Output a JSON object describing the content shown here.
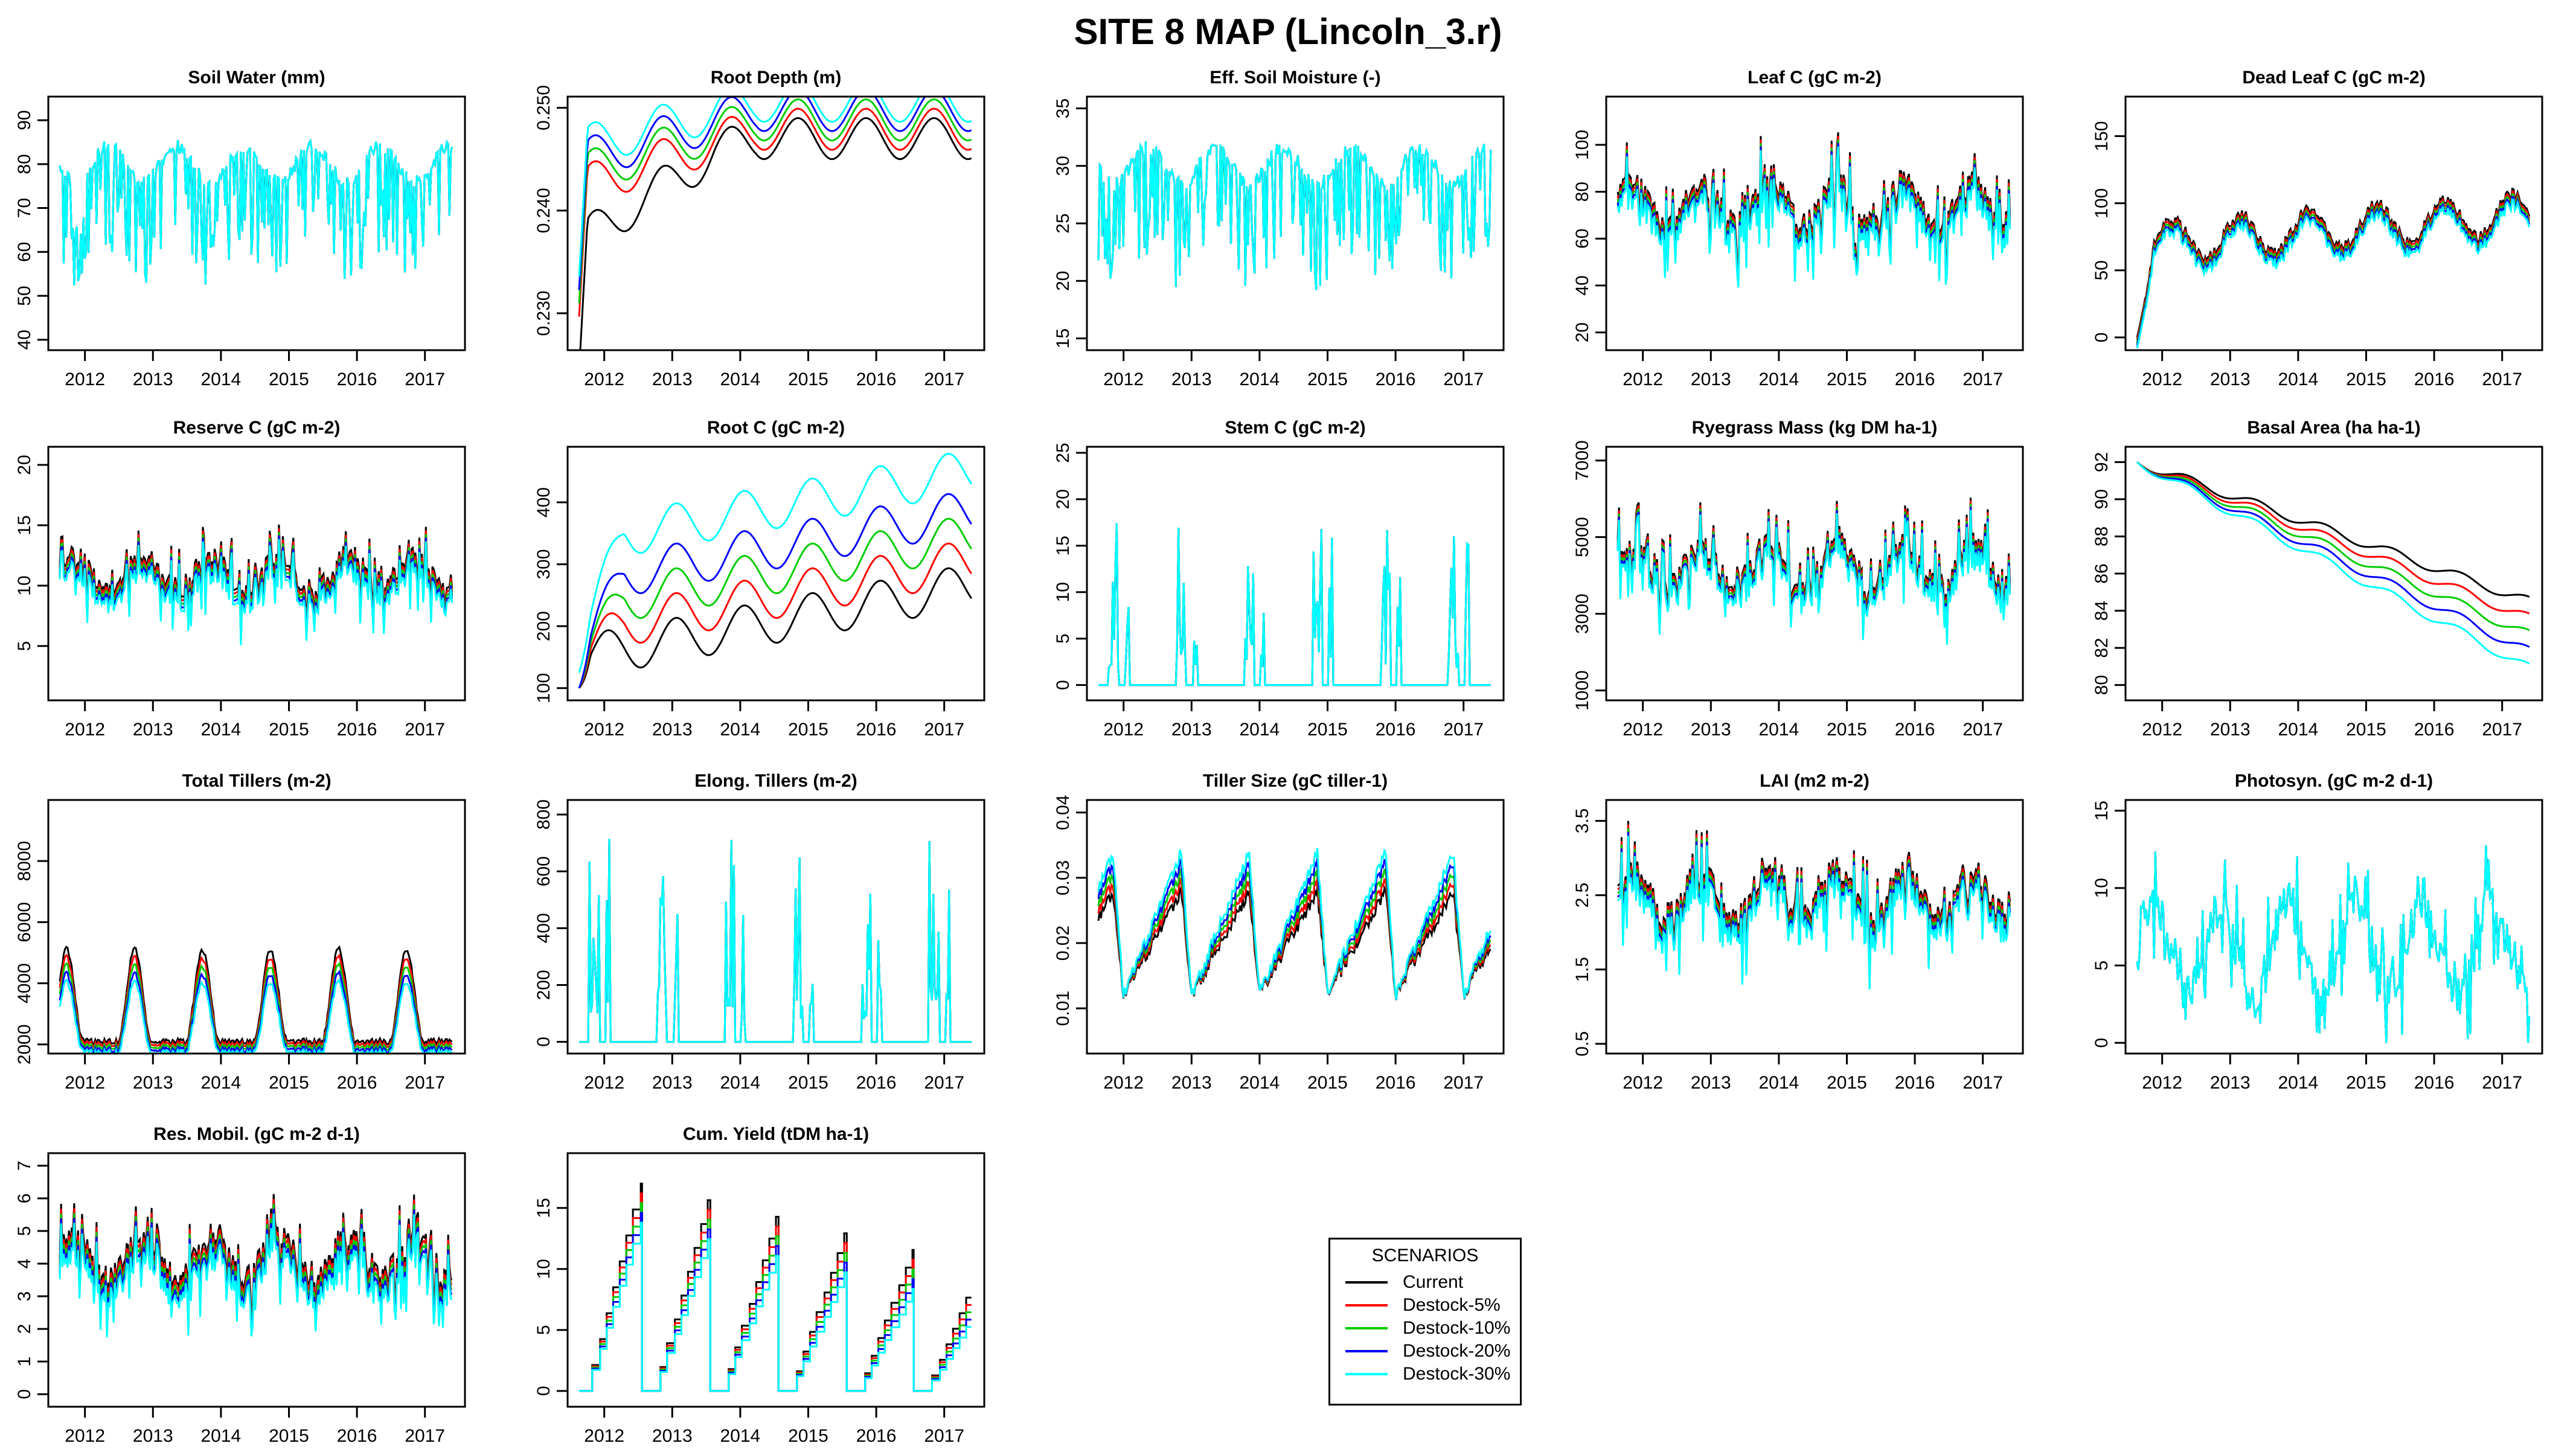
{
  "title": "SITE 8 MAP (Lincoln_3.r)",
  "legend": {
    "title": "SCENARIOS",
    "entries": [
      {
        "label": "Current",
        "color": "#000000"
      },
      {
        "label": "Destock-5%",
        "color": "#ff0000"
      },
      {
        "label": "Destock-10%",
        "color": "#00cd00"
      },
      {
        "label": "Destock-20%",
        "color": "#0000ff"
      },
      {
        "label": "Destock-30%",
        "color": "#00ffff"
      }
    ]
  },
  "chart_data": [
    {
      "type": "line",
      "title": "Soil Water (mm)",
      "x_range": [
        2011.55,
        2017.5
      ],
      "x_ticks": [
        2012,
        2013,
        2014,
        2015,
        2016,
        2017
      ],
      "ylim": [
        39,
        94
      ],
      "y_ticks": [
        40,
        50,
        60,
        70,
        80,
        90
      ],
      "y_tick_labels": [
        "40",
        "50",
        "60",
        "70",
        "80",
        "90"
      ],
      "pattern": "soilwater",
      "base": 80,
      "amp": 20,
      "spread": 0,
      "mode": "none",
      "scenarios": [
        "Current",
        "Destock-5%",
        "Destock-10%",
        "Destock-20%",
        "Destock-30%"
      ]
    },
    {
      "type": "line",
      "title": "Root Depth (m)",
      "x_range": [
        2011.55,
        2017.5
      ],
      "x_ticks": [
        2012,
        2013,
        2014,
        2015,
        2016,
        2017
      ],
      "ylim": [
        0.227,
        0.2505
      ],
      "y_ticks": [
        0.23,
        0.24,
        0.25
      ],
      "y_tick_labels": [
        "0.230",
        "0.240",
        "0.250"
      ],
      "pattern": "rootdepth",
      "base": 0.241,
      "amp": 0.004,
      "spread": 0.0013,
      "mode": "up",
      "start": 0.228,
      "scenarios": [
        "Current",
        "Destock-5%",
        "Destock-10%",
        "Destock-20%",
        "Destock-30%"
      ]
    },
    {
      "type": "line",
      "title": "Eff. Soil Moisture (-)",
      "x_range": [
        2011.55,
        2017.5
      ],
      "x_ticks": [
        2012,
        2013,
        2014,
        2015,
        2016,
        2017
      ],
      "ylim": [
        14.5,
        35.5
      ],
      "y_ticks": [
        15,
        20,
        25,
        30,
        35
      ],
      "y_tick_labels": [
        "15",
        "20",
        "25",
        "30",
        "35"
      ],
      "pattern": "soilwater",
      "base": 30,
      "amp": 8,
      "spread": 0,
      "mode": "none",
      "scenarios": [
        "Current",
        "Destock-5%",
        "Destock-10%",
        "Destock-20%",
        "Destock-30%"
      ]
    },
    {
      "type": "line",
      "title": "Leaf C (gC m-2)",
      "x_range": [
        2011.55,
        2017.5
      ],
      "x_ticks": [
        2012,
        2013,
        2014,
        2015,
        2016,
        2017
      ],
      "ylim": [
        15,
        118
      ],
      "y_ticks": [
        20,
        40,
        60,
        80,
        100
      ],
      "y_tick_labels": [
        "20",
        "40",
        "60",
        "80",
        "100"
      ],
      "pattern": "leaf",
      "base": 75,
      "amp": 25,
      "spread": 1.5,
      "mode": "down",
      "scenarios": [
        "Current",
        "Destock-5%",
        "Destock-10%",
        "Destock-20%",
        "Destock-30%"
      ]
    },
    {
      "type": "line",
      "title": "Dead Leaf C (gC m-2)",
      "x_range": [
        2011.55,
        2017.5
      ],
      "x_ticks": [
        2012,
        2013,
        2014,
        2015,
        2016,
        2017
      ],
      "ylim": [
        -5,
        175
      ],
      "y_ticks": [
        0,
        50,
        100,
        150
      ],
      "y_tick_labels": [
        "0",
        "50",
        "100",
        "150"
      ],
      "pattern": "deadleaf",
      "base": 70,
      "amp": 30,
      "spread": 2,
      "mode": "down",
      "start": 0,
      "scenarios": [
        "Current",
        "Destock-5%",
        "Destock-10%",
        "Destock-20%",
        "Destock-30%"
      ]
    },
    {
      "type": "line",
      "title": "Reserve C (gC m-2)",
      "x_range": [
        2011.55,
        2017.5
      ],
      "x_ticks": [
        2012,
        2013,
        2014,
        2015,
        2016,
        2017
      ],
      "ylim": [
        1,
        21
      ],
      "y_ticks": [
        5,
        10,
        15,
        20
      ],
      "y_tick_labels": [
        "5",
        "10",
        "15",
        "20"
      ],
      "pattern": "leaf",
      "base": 11,
      "amp": 4,
      "spread": 0.3,
      "mode": "down",
      "scenarios": [
        "Current",
        "Destock-5%",
        "Destock-10%",
        "Destock-20%",
        "Destock-30%"
      ]
    },
    {
      "type": "line",
      "title": "Root C (gC m-2)",
      "x_range": [
        2011.55,
        2017.5
      ],
      "x_ticks": [
        2012,
        2013,
        2014,
        2015,
        2016,
        2017
      ],
      "ylim": [
        90,
        480
      ],
      "y_ticks": [
        100,
        200,
        300,
        400
      ],
      "y_tick_labels": [
        "100",
        "200",
        "300",
        "400"
      ],
      "pattern": "rootc",
      "base": 150,
      "amp": 35,
      "spread": 40,
      "mode": "up",
      "start": 100,
      "scenarios": [
        "Current",
        "Destock-5%",
        "Destock-10%",
        "Destock-20%",
        "Destock-30%"
      ]
    },
    {
      "type": "line",
      "title": "Stem C (gC m-2)",
      "x_range": [
        2011.55,
        2017.5
      ],
      "x_ticks": [
        2012,
        2013,
        2014,
        2015,
        2016,
        2017
      ],
      "ylim": [
        -1,
        25
      ],
      "y_ticks": [
        0,
        5,
        10,
        15,
        20,
        25
      ],
      "y_tick_labels": [
        "0",
        "5",
        "10",
        "15",
        "20",
        "25"
      ],
      "pattern": "stem",
      "base": 0,
      "amp": 15,
      "spread": 0.5,
      "mode": "up",
      "scenarios": [
        "Current",
        "Destock-5%",
        "Destock-10%",
        "Destock-20%",
        "Destock-30%"
      ]
    },
    {
      "type": "line",
      "title": "Ryegrass Mass (kg DM ha-1)",
      "x_range": [
        2011.55,
        2017.5
      ],
      "x_ticks": [
        2012,
        2013,
        2014,
        2015,
        2016,
        2017
      ],
      "ylim": [
        900,
        7200
      ],
      "y_ticks": [
        1000,
        3000,
        5000,
        7000
      ],
      "y_tick_labels": [
        "1000",
        "3000",
        "5000",
        "7000"
      ],
      "pattern": "leaf",
      "base": 4200,
      "amp": 1600,
      "spread": 80,
      "mode": "down",
      "scenarios": [
        "Current",
        "Destock-5%",
        "Destock-10%",
        "Destock-20%",
        "Destock-30%"
      ]
    },
    {
      "type": "line",
      "title": "Basal Area (ha ha-1)",
      "x_range": [
        2011.55,
        2017.5
      ],
      "x_ticks": [
        2012,
        2013,
        2014,
        2015,
        2016,
        2017
      ],
      "ylim": [
        79.5,
        92.5
      ],
      "y_ticks": [
        80,
        82,
        84,
        86,
        88,
        90,
        92
      ],
      "y_tick_labels": [
        "80",
        "82",
        "84",
        "86",
        "88",
        "90",
        "92"
      ],
      "pattern": "basal",
      "base": 92,
      "amp": 0,
      "spread": 0.9,
      "mode": "down",
      "scenarios": [
        "Current",
        "Destock-5%",
        "Destock-10%",
        "Destock-20%",
        "Destock-30%"
      ]
    },
    {
      "type": "line",
      "title": "Total Tillers (m-2)",
      "x_range": [
        2011.55,
        2017.5
      ],
      "x_ticks": [
        2012,
        2013,
        2014,
        2015,
        2016,
        2017
      ],
      "ylim": [
        1900,
        9800
      ],
      "y_ticks": [
        2000,
        4000,
        6000,
        8000
      ],
      "y_tick_labels": [
        "2000",
        "4000",
        "6000",
        "8000"
      ],
      "pattern": "tillers",
      "base": 3500,
      "amp": 3000,
      "spread": 180,
      "mode": "down",
      "scenarios": [
        "Current",
        "Destock-5%",
        "Destock-10%",
        "Destock-20%",
        "Destock-30%"
      ]
    },
    {
      "type": "line",
      "title": "Elong. Tillers (m-2)",
      "x_range": [
        2011.55,
        2017.5
      ],
      "x_ticks": [
        2012,
        2013,
        2014,
        2015,
        2016,
        2017
      ],
      "ylim": [
        -20,
        830
      ],
      "y_ticks": [
        0,
        200,
        400,
        600,
        800
      ],
      "y_tick_labels": [
        "0",
        "200",
        "400",
        "600",
        "800"
      ],
      "pattern": "stem",
      "base": 0,
      "amp": 600,
      "spread": 10,
      "mode": "up",
      "scenarios": [
        "Current",
        "Destock-5%",
        "Destock-10%",
        "Destock-20%",
        "Destock-30%"
      ]
    },
    {
      "type": "line",
      "title": "Tiller Size (gC tiller-1)",
      "x_range": [
        2011.55,
        2017.5
      ],
      "x_ticks": [
        2012,
        2013,
        2014,
        2015,
        2016,
        2017
      ],
      "ylim": [
        0.004,
        0.041
      ],
      "y_ticks": [
        0.01,
        0.02,
        0.03,
        0.04
      ],
      "y_tick_labels": [
        "0.01",
        "0.02",
        "0.03",
        "0.04"
      ],
      "pattern": "tillersize",
      "base": 0.012,
      "amp": 0.02,
      "spread": 0.0015,
      "mode": "up",
      "scenarios": [
        "Current",
        "Destock-5%",
        "Destock-10%",
        "Destock-20%",
        "Destock-30%"
      ]
    },
    {
      "type": "line",
      "title": "LAI (m2 m-2)",
      "x_range": [
        2011.55,
        2017.5
      ],
      "x_ticks": [
        2012,
        2013,
        2014,
        2015,
        2016,
        2017
      ],
      "ylim": [
        0.45,
        3.7
      ],
      "y_ticks": [
        0.5,
        1.5,
        2.5,
        3.5
      ],
      "y_tick_labels": [
        "0.5",
        "1.5",
        "2.5",
        "3.5"
      ],
      "pattern": "leaf",
      "base": 2.5,
      "amp": 0.9,
      "spread": 0.05,
      "mode": "down",
      "scenarios": [
        "Current",
        "Destock-5%",
        "Destock-10%",
        "Destock-20%",
        "Destock-30%"
      ]
    },
    {
      "type": "line",
      "title": "Photosyn. (gC m-2 d-1)",
      "x_range": [
        2011.55,
        2017.5
      ],
      "x_ticks": [
        2012,
        2013,
        2014,
        2015,
        2016,
        2017
      ],
      "ylim": [
        -0.3,
        15.3
      ],
      "y_ticks": [
        0,
        5,
        10,
        15
      ],
      "y_tick_labels": [
        "0",
        "5",
        "10",
        "15"
      ],
      "pattern": "photo",
      "base": 6,
      "amp": 6,
      "spread": 0.1,
      "mode": "down",
      "scenarios": [
        "Current",
        "Destock-5%",
        "Destock-10%",
        "Destock-20%",
        "Destock-30%"
      ]
    },
    {
      "type": "line",
      "title": "Res. Mobil. (gC m-2 d-1)",
      "x_range": [
        2011.55,
        2017.5
      ],
      "x_ticks": [
        2012,
        2013,
        2014,
        2015,
        2016,
        2017
      ],
      "ylim": [
        -0.2,
        7.2
      ],
      "y_ticks": [
        0,
        1,
        2,
        3,
        4,
        5,
        6,
        7
      ],
      "y_tick_labels": [
        "0",
        "1",
        "2",
        "3",
        "4",
        "5",
        "6",
        "7"
      ],
      "pattern": "leaf",
      "base": 4.2,
      "amp": 1.8,
      "spread": 0.15,
      "mode": "down",
      "scenarios": [
        "Current",
        "Destock-5%",
        "Destock-10%",
        "Destock-20%",
        "Destock-30%"
      ]
    },
    {
      "type": "line",
      "title": "Cum. Yield (tDM ha-1)",
      "x_range": [
        2011.55,
        2017.5
      ],
      "x_ticks": [
        2012,
        2013,
        2014,
        2015,
        2016,
        2017
      ],
      "ylim": [
        -0.8,
        19
      ],
      "y_ticks": [
        0,
        5,
        10,
        15
      ],
      "y_tick_labels": [
        "0",
        "5",
        "10",
        "15"
      ],
      "pattern": "yield",
      "base": 0,
      "amp": 17,
      "spread": 0.8,
      "mode": "down",
      "scenarios": [
        "Current",
        "Destock-5%",
        "Destock-10%",
        "Destock-20%",
        "Destock-30%"
      ]
    }
  ]
}
